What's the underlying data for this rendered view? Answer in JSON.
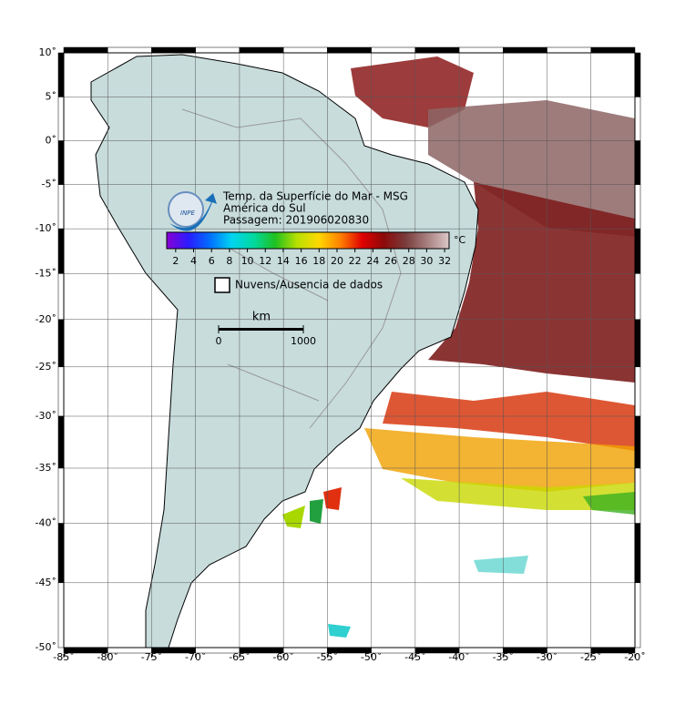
{
  "map": {
    "title": "Temp. da Superfície do Mar - MSG",
    "region": "América do Sul",
    "pass": "Passagem: 201906020830",
    "logo": "INPE",
    "xlim": [
      -85,
      -20
    ],
    "ylim": [
      -50,
      10
    ],
    "xticks": [
      {
        "value": -85,
        "label": "-85˚"
      },
      {
        "value": -80,
        "label": "-80˚"
      },
      {
        "value": -75,
        "label": "-75˚"
      },
      {
        "value": -70,
        "label": "-70˚"
      },
      {
        "value": -65,
        "label": "-65˚"
      },
      {
        "value": -60,
        "label": "-60˚"
      },
      {
        "value": -55,
        "label": "-55˚"
      },
      {
        "value": -50,
        "label": "-50˚"
      },
      {
        "value": -45,
        "label": "-45˚"
      },
      {
        "value": -40,
        "label": "-40˚"
      },
      {
        "value": -35,
        "label": "-35˚"
      },
      {
        "value": -30,
        "label": "-30˚"
      },
      {
        "value": -25,
        "label": "-25˚"
      },
      {
        "value": -20,
        "label": "-20˚"
      }
    ],
    "yticks": [
      {
        "value": 10,
        "label": "10˚"
      },
      {
        "value": 5,
        "label": "5˚"
      },
      {
        "value": 0,
        "label": "0˚"
      },
      {
        "value": -5,
        "label": "-5˚"
      },
      {
        "value": -10,
        "label": "-10˚"
      },
      {
        "value": -15,
        "label": "-15˚"
      },
      {
        "value": -20,
        "label": "-20˚"
      },
      {
        "value": -25,
        "label": "-25˚"
      },
      {
        "value": -30,
        "label": "-30˚"
      },
      {
        "value": -35,
        "label": "-35˚"
      },
      {
        "value": -40,
        "label": "-40˚"
      },
      {
        "value": -45,
        "label": "-45˚"
      },
      {
        "value": -50,
        "label": "-50˚"
      }
    ],
    "grid": true,
    "colorbar": {
      "unit": "°C",
      "clim": [
        1,
        32.5
      ],
      "ticks": [
        2,
        4,
        6,
        8,
        10,
        12,
        14,
        16,
        18,
        20,
        22,
        24,
        26,
        28,
        30,
        32
      ],
      "colors": [
        "#8a00d4",
        "#2a1cff",
        "#0070ff",
        "#00d4f0",
        "#00d9a0",
        "#20c020",
        "#b8e000",
        "#ffd800",
        "#ff8000",
        "#e00000",
        "#8c0a0a",
        "#7a3c3c",
        "#a88080",
        "#dcc8c8"
      ]
    },
    "legend": "Nuvens/Ausencia de dados",
    "scale": {
      "unit": "km",
      "ticks": [
        0,
        1000
      ]
    }
  }
}
